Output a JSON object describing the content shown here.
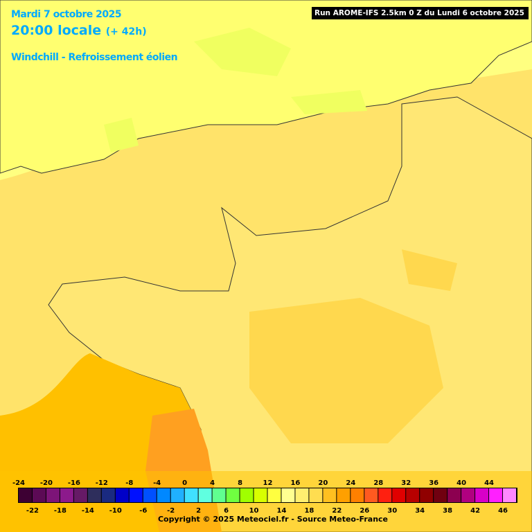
{
  "header": {
    "date": "Mardi 7 octobre 2025",
    "time": "20:00 locale",
    "lead": "(+ 42h)",
    "parameter": "Windchill - Refroissement éolien",
    "run": "Run AROME-IFS 2.5km 0 Z du Lundi 6 octobre 2025"
  },
  "legend": {
    "values": [
      -24,
      -22,
      -20,
      -18,
      -16,
      -14,
      -12,
      -10,
      -8,
      -6,
      -4,
      -2,
      0,
      2,
      4,
      6,
      8,
      10,
      12,
      14,
      16,
      18,
      20,
      22,
      24,
      26,
      28,
      30,
      32,
      34,
      36,
      38,
      40,
      42,
      44,
      46
    ],
    "colors": [
      "#3d0033",
      "#5c0a55",
      "#7d1478",
      "#8c1a8c",
      "#661a66",
      "#2e2e5c",
      "#1a2a80",
      "#0000c8",
      "#0010ff",
      "#0050ff",
      "#0088ff",
      "#20b0ff",
      "#40e0ff",
      "#60ffe0",
      "#60ff90",
      "#70ff40",
      "#a0ff00",
      "#d8ff00",
      "#ffff40",
      "#ffff90",
      "#ffef70",
      "#ffdd50",
      "#ffc020",
      "#ffa000",
      "#ff8000",
      "#ff5a20",
      "#ff2010",
      "#e00000",
      "#b80000",
      "#900000",
      "#700010",
      "#8c0050",
      "#b00080",
      "#d800c8",
      "#ff20ff",
      "#ff88ff"
    ]
  },
  "footer": {
    "copyright": "Copyright © 2025 Meteociel.fr - Source Meteo-France"
  }
}
